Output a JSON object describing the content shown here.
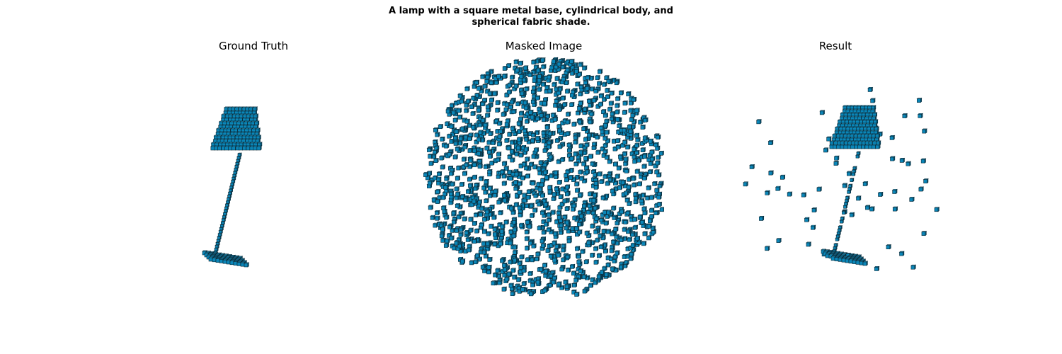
{
  "figure": {
    "caption_line1": "A lamp with a square metal base, cylindrical body, and",
    "caption_line2": "spherical fabric shade."
  },
  "panels": [
    {
      "title": "Ground Truth"
    },
    {
      "title": "Masked Image"
    },
    {
      "title": "Result"
    }
  ],
  "colors": {
    "voxel_top": "#33b3e0",
    "voxel_front": "#0a86b8",
    "voxel_side": "#065a7c",
    "voxel_edge": "#0a2a38",
    "background": "#ffffff"
  }
}
